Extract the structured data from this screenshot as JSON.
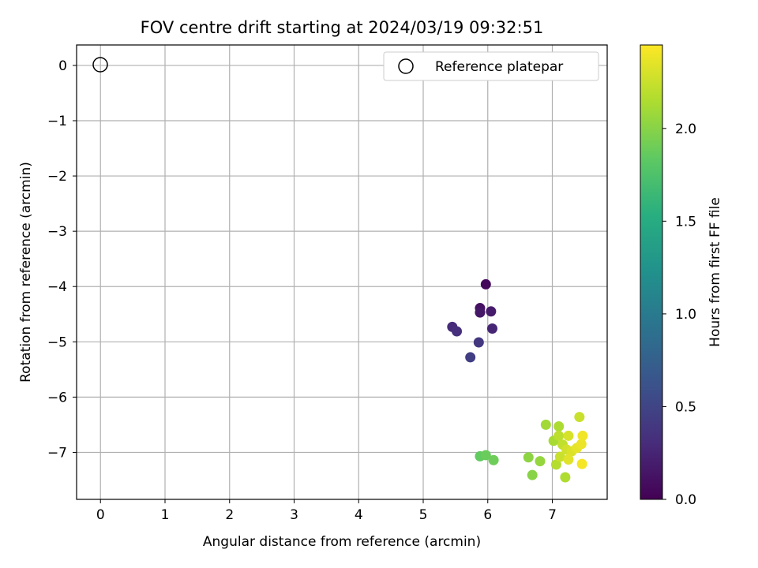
{
  "chart_data": {
    "type": "scatter",
    "title": "FOV centre drift starting at 2024/03/19 09:32:51",
    "xlabel": "Angular distance from reference (arcmin)",
    "ylabel": "Rotation from reference (arcmin)",
    "xlim": [
      -0.37,
      7.85
    ],
    "ylim": [
      -7.85,
      0.37
    ],
    "xticks": [
      0,
      1,
      2,
      3,
      4,
      5,
      6,
      7
    ],
    "yticks": [
      0,
      -1,
      -2,
      -3,
      -4,
      -5,
      -6,
      -7
    ],
    "grid": true,
    "legend": {
      "position": "top-right",
      "entries": [
        "Reference platepar"
      ]
    },
    "reference_point": {
      "label": "Reference platepar",
      "x": 0,
      "y": 0,
      "marker": "open-circle"
    },
    "colorbar": {
      "label": "Hours from first FF file",
      "colormap": "viridis",
      "range": [
        0,
        2.45
      ],
      "ticks": [
        0.0,
        0.5,
        1.0,
        1.5,
        2.0
      ],
      "tick_labels": [
        "0.0",
        "0.5",
        "1.0",
        "1.5",
        "2.0"
      ]
    },
    "points": [
      {
        "x": 5.97,
        "y": -3.96,
        "hours": 0.05
      },
      {
        "x": 5.88,
        "y": -4.39,
        "hours": 0.12
      },
      {
        "x": 5.88,
        "y": -4.47,
        "hours": 0.15
      },
      {
        "x": 6.05,
        "y": -4.45,
        "hours": 0.18
      },
      {
        "x": 6.07,
        "y": -4.76,
        "hours": 0.25
      },
      {
        "x": 5.45,
        "y": -4.73,
        "hours": 0.3
      },
      {
        "x": 5.52,
        "y": -4.81,
        "hours": 0.33
      },
      {
        "x": 5.86,
        "y": -5.01,
        "hours": 0.4
      },
      {
        "x": 5.73,
        "y": -5.28,
        "hours": 0.45
      },
      {
        "x": 5.88,
        "y": -7.07,
        "hours": 1.85
      },
      {
        "x": 5.97,
        "y": -7.05,
        "hours": 1.88
      },
      {
        "x": 6.09,
        "y": -7.14,
        "hours": 1.9
      },
      {
        "x": 6.69,
        "y": -7.41,
        "hours": 2.0
      },
      {
        "x": 6.63,
        "y": -7.09,
        "hours": 2.02
      },
      {
        "x": 6.81,
        "y": -7.16,
        "hours": 2.05
      },
      {
        "x": 6.9,
        "y": -6.5,
        "hours": 2.1
      },
      {
        "x": 7.02,
        "y": -6.79,
        "hours": 2.12
      },
      {
        "x": 7.1,
        "y": -6.53,
        "hours": 2.14
      },
      {
        "x": 7.2,
        "y": -7.45,
        "hours": 2.15
      },
      {
        "x": 7.06,
        "y": -7.22,
        "hours": 2.17
      },
      {
        "x": 7.1,
        "y": -6.7,
        "hours": 2.2
      },
      {
        "x": 7.16,
        "y": -6.86,
        "hours": 2.22
      },
      {
        "x": 7.12,
        "y": -7.08,
        "hours": 2.25
      },
      {
        "x": 7.22,
        "y": -6.95,
        "hours": 2.28
      },
      {
        "x": 7.25,
        "y": -6.7,
        "hours": 2.3
      },
      {
        "x": 7.3,
        "y": -6.98,
        "hours": 2.32
      },
      {
        "x": 7.25,
        "y": -7.13,
        "hours": 2.34
      },
      {
        "x": 7.38,
        "y": -6.92,
        "hours": 2.36
      },
      {
        "x": 7.42,
        "y": -6.36,
        "hours": 2.25
      },
      {
        "x": 7.45,
        "y": -6.85,
        "hours": 2.38
      },
      {
        "x": 7.47,
        "y": -6.7,
        "hours": 2.4
      },
      {
        "x": 7.46,
        "y": -7.21,
        "hours": 2.42
      }
    ]
  }
}
